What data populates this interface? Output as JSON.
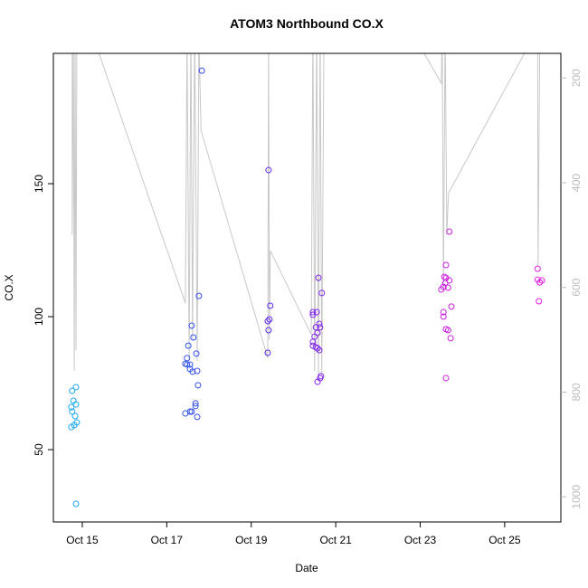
{
  "chart_data": {
    "type": "scatter",
    "title": "ATOM3 Northbound CO.X",
    "x_label": "Date",
    "y_label": "CO.X",
    "xlim": [
      14.315,
      26.33
    ],
    "ylim": [
      22.8,
      199
    ],
    "y2lim": [
      1048,
      153
    ],
    "xticks": [
      {
        "value": 15,
        "label": "Oct 15"
      },
      {
        "value": 17,
        "label": "Oct 17"
      },
      {
        "value": 19,
        "label": "Oct 19"
      },
      {
        "value": 21,
        "label": "Oct 21"
      },
      {
        "value": 23,
        "label": "Oct 23"
      },
      {
        "value": 25,
        "label": "Oct 25"
      }
    ],
    "yticks": [
      50,
      100,
      150
    ],
    "y2ticks": [
      200,
      400,
      600,
      800,
      1000
    ],
    "color_gradient": [
      "#19b8f0",
      "#1f66e6",
      "#5a2ef0",
      "#9b22e6",
      "#d21ee0",
      "#e81ee6"
    ],
    "series": [
      {
        "style": "points",
        "x": [
          14.76,
          14.79,
          14.85,
          14.74,
          14.76,
          14.85,
          14.83,
          14.87,
          14.74,
          14.81,
          14.85,
          17.44,
          17.55,
          17.59,
          17.51,
          17.48,
          17.48,
          17.55,
          17.55,
          17.61,
          17.72,
          17.59,
          17.63,
          17.7,
          17.74,
          17.68,
          17.68,
          17.72,
          17.76,
          17.83,
          17.44,
          19.41,
          19.45,
          19.43,
          19.39,
          19.41,
          19.39,
          20.46,
          20.46,
          20.55,
          20.46,
          20.5,
          20.46,
          20.53,
          20.57,
          20.61,
          20.53,
          20.57,
          20.61,
          20.63,
          20.59,
          20.67,
          20.65,
          20.63,
          20.57,
          23.5,
          23.55,
          23.57,
          23.61,
          23.59,
          23.69,
          23.66,
          23.61,
          23.69,
          23.55,
          23.55,
          23.61,
          23.66,
          23.72,
          23.74,
          23.61,
          25.78,
          25.78,
          25.83,
          25.88,
          25.81
        ],
        "values": [
          72.1,
          68.4,
          73.5,
          66.0,
          64.3,
          67.0,
          62.6,
          60.2,
          58.5,
          59.2,
          29.6,
          63.6,
          64.3,
          64.3,
          89.1,
          84.4,
          82.0,
          82.0,
          80.3,
          79.3,
          79.6,
          96.6,
          92.2,
          86.1,
          74.2,
          67.4,
          66.4,
          62.3,
          107.8,
          192.5,
          82.3,
          155.1,
          104.1,
          99.0,
          98.3,
          94.9,
          86.4,
          101.7,
          100.7,
          101.7,
          90.5,
          92.5,
          89.1,
          88.5,
          88.1,
          87.4,
          96.0,
          93.9,
          97.3,
          96.0,
          114.6,
          108.9,
          77.6,
          76.9,
          75.5,
          110.2,
          111.2,
          115.0,
          114.6,
          112.6,
          113.6,
          110.9,
          119.4,
          132.0,
          101.7,
          100.0,
          95.3,
          94.9,
          91.9,
          103.8,
          76.9,
          118.0,
          113.9,
          112.9,
          113.6,
          105.8
        ]
      },
      {
        "style": "line",
        "axis": "y2",
        "color": "#c8c8c8",
        "x": [
          14.76,
          14.76,
          14.79,
          14.81,
          14.83,
          14.85,
          14.87,
          15.34,
          17.44,
          17.48,
          17.53,
          17.57,
          17.61,
          17.66,
          17.72,
          17.76,
          17.81,
          19.39,
          19.41,
          19.43,
          19.45,
          20.42,
          20.46,
          20.5,
          20.55,
          20.59,
          20.63,
          20.67,
          20.72,
          22.86,
          23.5,
          23.52,
          23.55,
          23.59,
          23.63,
          23.67,
          25.69,
          25.78,
          25.79,
          25.83
        ],
        "values": [
          120,
          500,
          120,
          760,
          130,
          720,
          120,
          140,
          630,
          120,
          740,
          100,
          700,
          100,
          740,
          120,
          300,
          735,
          100,
          700,
          530,
          690,
          100,
          760,
          100,
          780,
          100,
          770,
          120,
          120,
          210,
          100,
          600,
          100,
          500,
          420,
          120,
          100,
          560,
          130
        ]
      }
    ]
  }
}
